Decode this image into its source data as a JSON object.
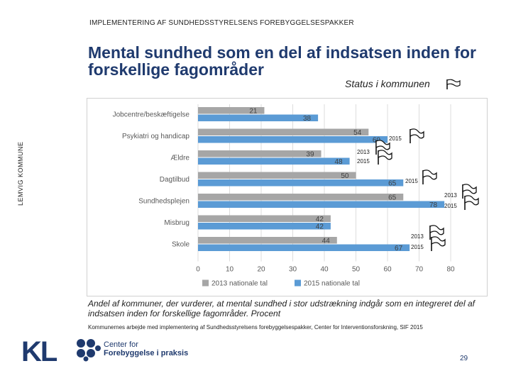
{
  "header": {
    "top_label": "IMPLEMENTERING AF SUNDHEDSSTYRELSENS FOREBYGGELSESPAKKER",
    "side_label": "LEMVIG KOMMUNE"
  },
  "title": "Mental sundhed som en del af indsatsen inden for forskellige fagområder",
  "status_label": "Status i kommunen",
  "chart_data": {
    "type": "bar",
    "orientation": "horizontal",
    "categories": [
      "Jobcentre/beskæftigelse",
      "Psykiatri og handicap",
      "Ældre",
      "Dagtilbud",
      "Sundhedsplejen",
      "Misbrug",
      "Skole"
    ],
    "series": [
      {
        "name": "2013 nationale tal",
        "color": "#a6a6a6",
        "values": [
          21,
          54,
          39,
          50,
          65,
          42,
          44
        ]
      },
      {
        "name": "2015 nationale tal",
        "color": "#5b9bd5",
        "values": [
          38,
          60,
          48,
          65,
          78,
          42,
          67
        ]
      }
    ],
    "xlim": [
      0,
      80
    ],
    "xticks": [
      "0",
      "10",
      "20",
      "30",
      "40",
      "50",
      "60",
      "70",
      "80"
    ],
    "grid": true,
    "legend": "bottom",
    "title": "",
    "xlabel": "",
    "ylabel": ""
  },
  "annotations": [
    {
      "id": "psyk",
      "lines": [
        "2015"
      ]
    },
    {
      "id": "aeldre",
      "lines": [
        "2013",
        "2015"
      ]
    },
    {
      "id": "dagtilbud",
      "lines": [
        "2015"
      ]
    },
    {
      "id": "sundhed",
      "lines": [
        "2013",
        "2015"
      ]
    },
    {
      "id": "skole",
      "lines": [
        "2013",
        "2015"
      ]
    }
  ],
  "caption": "Andel af kommuner, der vurderer, at mental sundhed i stor udstrækning indgår som en integreret del af indsatsen inden for forskellige fagområder. Procent",
  "source": "Kommunernes arbejde med implementering af Sundhedsstyrelsens forebyggelsespakker, Center for Interventionsforskning, SIF 2015",
  "logos": {
    "kl": "KL",
    "center_line1": "Center for",
    "center_line2": "Forebyggelse i praksis"
  },
  "page_number": "29",
  "colors": {
    "title": "#1f3a6e",
    "bar2013": "#a6a6a6",
    "bar2015": "#5b9bd5"
  }
}
